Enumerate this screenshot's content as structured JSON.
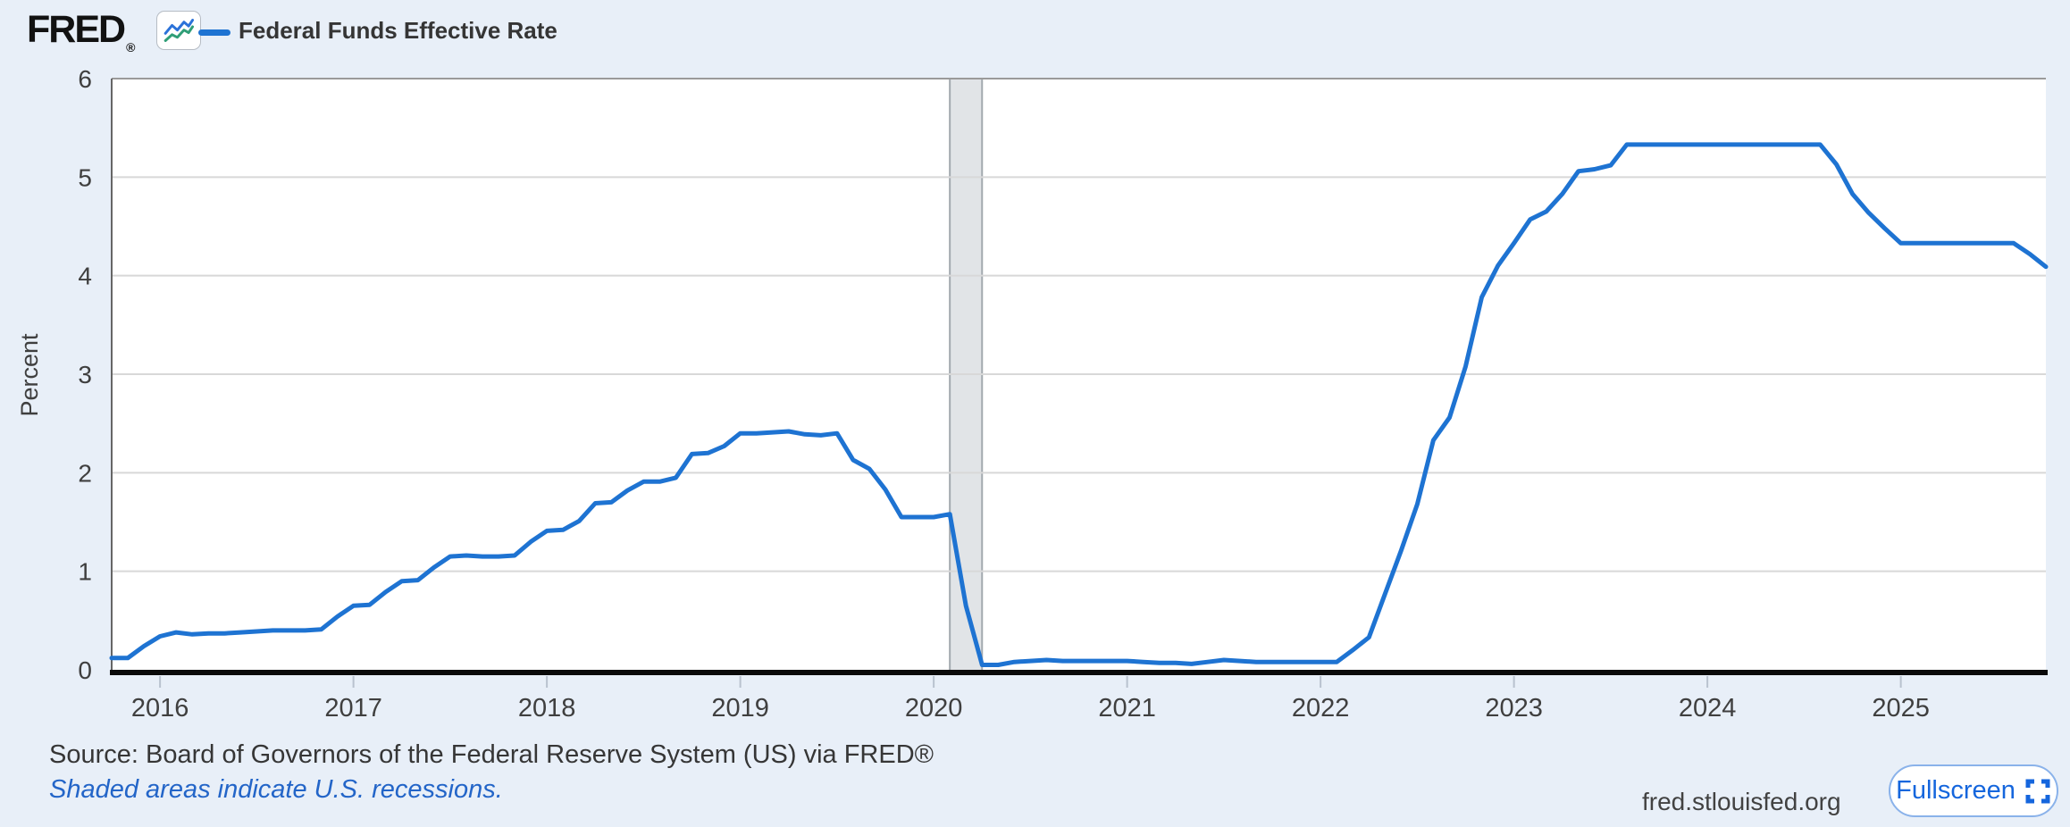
{
  "header": {
    "logo_text": "FRED",
    "registered_mark": "®",
    "legend_label": "Federal Funds Effective Rate"
  },
  "chart_data": {
    "type": "line",
    "title": "Federal Funds Effective Rate",
    "ylabel": "Percent",
    "ylim": [
      0,
      6
    ],
    "yticks": [
      0,
      1,
      2,
      3,
      4,
      5,
      6
    ],
    "xtick_labels": [
      "2016",
      "2017",
      "2018",
      "2019",
      "2020",
      "2021",
      "2022",
      "2023",
      "2024",
      "2025"
    ],
    "x_start": "2015-10",
    "x_end": "2025-10",
    "grid": "horizontal",
    "legend_position": "top-left",
    "line_color": "#1e73d2",
    "recession_bands": [
      {
        "start": "2020-02",
        "end": "2020-04"
      }
    ],
    "series": [
      {
        "name": "Federal Funds Effective Rate",
        "x": [
          "2015-10",
          "2015-11",
          "2015-12",
          "2016-01",
          "2016-02",
          "2016-03",
          "2016-04",
          "2016-05",
          "2016-06",
          "2016-07",
          "2016-08",
          "2016-09",
          "2016-10",
          "2016-11",
          "2016-12",
          "2017-01",
          "2017-02",
          "2017-03",
          "2017-04",
          "2017-05",
          "2017-06",
          "2017-07",
          "2017-08",
          "2017-09",
          "2017-10",
          "2017-11",
          "2017-12",
          "2018-01",
          "2018-02",
          "2018-03",
          "2018-04",
          "2018-05",
          "2018-06",
          "2018-07",
          "2018-08",
          "2018-09",
          "2018-10",
          "2018-11",
          "2018-12",
          "2019-01",
          "2019-02",
          "2019-03",
          "2019-04",
          "2019-05",
          "2019-06",
          "2019-07",
          "2019-08",
          "2019-09",
          "2019-10",
          "2019-11",
          "2019-12",
          "2020-01",
          "2020-02",
          "2020-03",
          "2020-04",
          "2020-05",
          "2020-06",
          "2020-07",
          "2020-08",
          "2020-09",
          "2020-10",
          "2020-11",
          "2020-12",
          "2021-01",
          "2021-02",
          "2021-03",
          "2021-04",
          "2021-05",
          "2021-06",
          "2021-07",
          "2021-08",
          "2021-09",
          "2021-10",
          "2021-11",
          "2021-12",
          "2022-01",
          "2022-02",
          "2022-03",
          "2022-04",
          "2022-05",
          "2022-06",
          "2022-07",
          "2022-08",
          "2022-09",
          "2022-10",
          "2022-11",
          "2022-12",
          "2023-01",
          "2023-02",
          "2023-03",
          "2023-04",
          "2023-05",
          "2023-06",
          "2023-07",
          "2023-08",
          "2023-09",
          "2023-10",
          "2023-11",
          "2023-12",
          "2024-01",
          "2024-02",
          "2024-03",
          "2024-04",
          "2024-05",
          "2024-06",
          "2024-07",
          "2024-08",
          "2024-09",
          "2024-10",
          "2024-11",
          "2024-12",
          "2025-01",
          "2025-02",
          "2025-03",
          "2025-04",
          "2025-05",
          "2025-06",
          "2025-07",
          "2025-08",
          "2025-09",
          "2025-10"
        ],
        "y": [
          0.12,
          0.12,
          0.24,
          0.34,
          0.38,
          0.36,
          0.37,
          0.37,
          0.38,
          0.39,
          0.4,
          0.4,
          0.4,
          0.41,
          0.54,
          0.65,
          0.66,
          0.79,
          0.9,
          0.91,
          1.04,
          1.15,
          1.16,
          1.15,
          1.15,
          1.16,
          1.3,
          1.41,
          1.42,
          1.51,
          1.69,
          1.7,
          1.82,
          1.91,
          1.91,
          1.95,
          2.19,
          2.2,
          2.27,
          2.4,
          2.4,
          2.41,
          2.42,
          2.39,
          2.38,
          2.4,
          2.13,
          2.04,
          1.83,
          1.55,
          1.55,
          1.55,
          1.58,
          0.65,
          0.05,
          0.05,
          0.08,
          0.09,
          0.1,
          0.09,
          0.09,
          0.09,
          0.09,
          0.09,
          0.08,
          0.07,
          0.07,
          0.06,
          0.08,
          0.1,
          0.09,
          0.08,
          0.08,
          0.08,
          0.08,
          0.08,
          0.08,
          0.2,
          0.33,
          0.77,
          1.21,
          1.68,
          2.33,
          2.56,
          3.08,
          3.78,
          4.1,
          4.33,
          4.57,
          4.65,
          4.83,
          5.06,
          5.08,
          5.12,
          5.33,
          5.33,
          5.33,
          5.33,
          5.33,
          5.33,
          5.33,
          5.33,
          5.33,
          5.33,
          5.33,
          5.33,
          5.33,
          5.13,
          4.83,
          4.64,
          4.48,
          4.33,
          4.33,
          4.33,
          4.33,
          4.33,
          4.33,
          4.33,
          4.33,
          4.22,
          4.09
        ]
      }
    ]
  },
  "footer": {
    "source": "Source: Board of Governors of the Federal Reserve System (US) via FRED®",
    "recession_note": "Shaded areas indicate U.S. recessions.",
    "site": "fred.stlouisfed.org",
    "fullscreen_label": "Fullscreen"
  },
  "colors": {
    "page_bg": "#e8eff8",
    "plot_bg": "#ffffff",
    "line": "#1e73d2",
    "gridline": "#d8d8d8",
    "plot_top_border": "#9a9a9a",
    "plot_left_border": "#666666",
    "axis": "#0a0a0a",
    "tick": "#b9c2cf",
    "tick_label": "#3f3f3f",
    "recession_fill": "#c9ced4",
    "recession_edge": "#a3a9af",
    "link_blue": "#2365c8",
    "button_blue": "#1566dd",
    "button_border": "#8ab2ea",
    "icon_blue": "#2b72d9",
    "icon_green": "#2f9e77"
  }
}
